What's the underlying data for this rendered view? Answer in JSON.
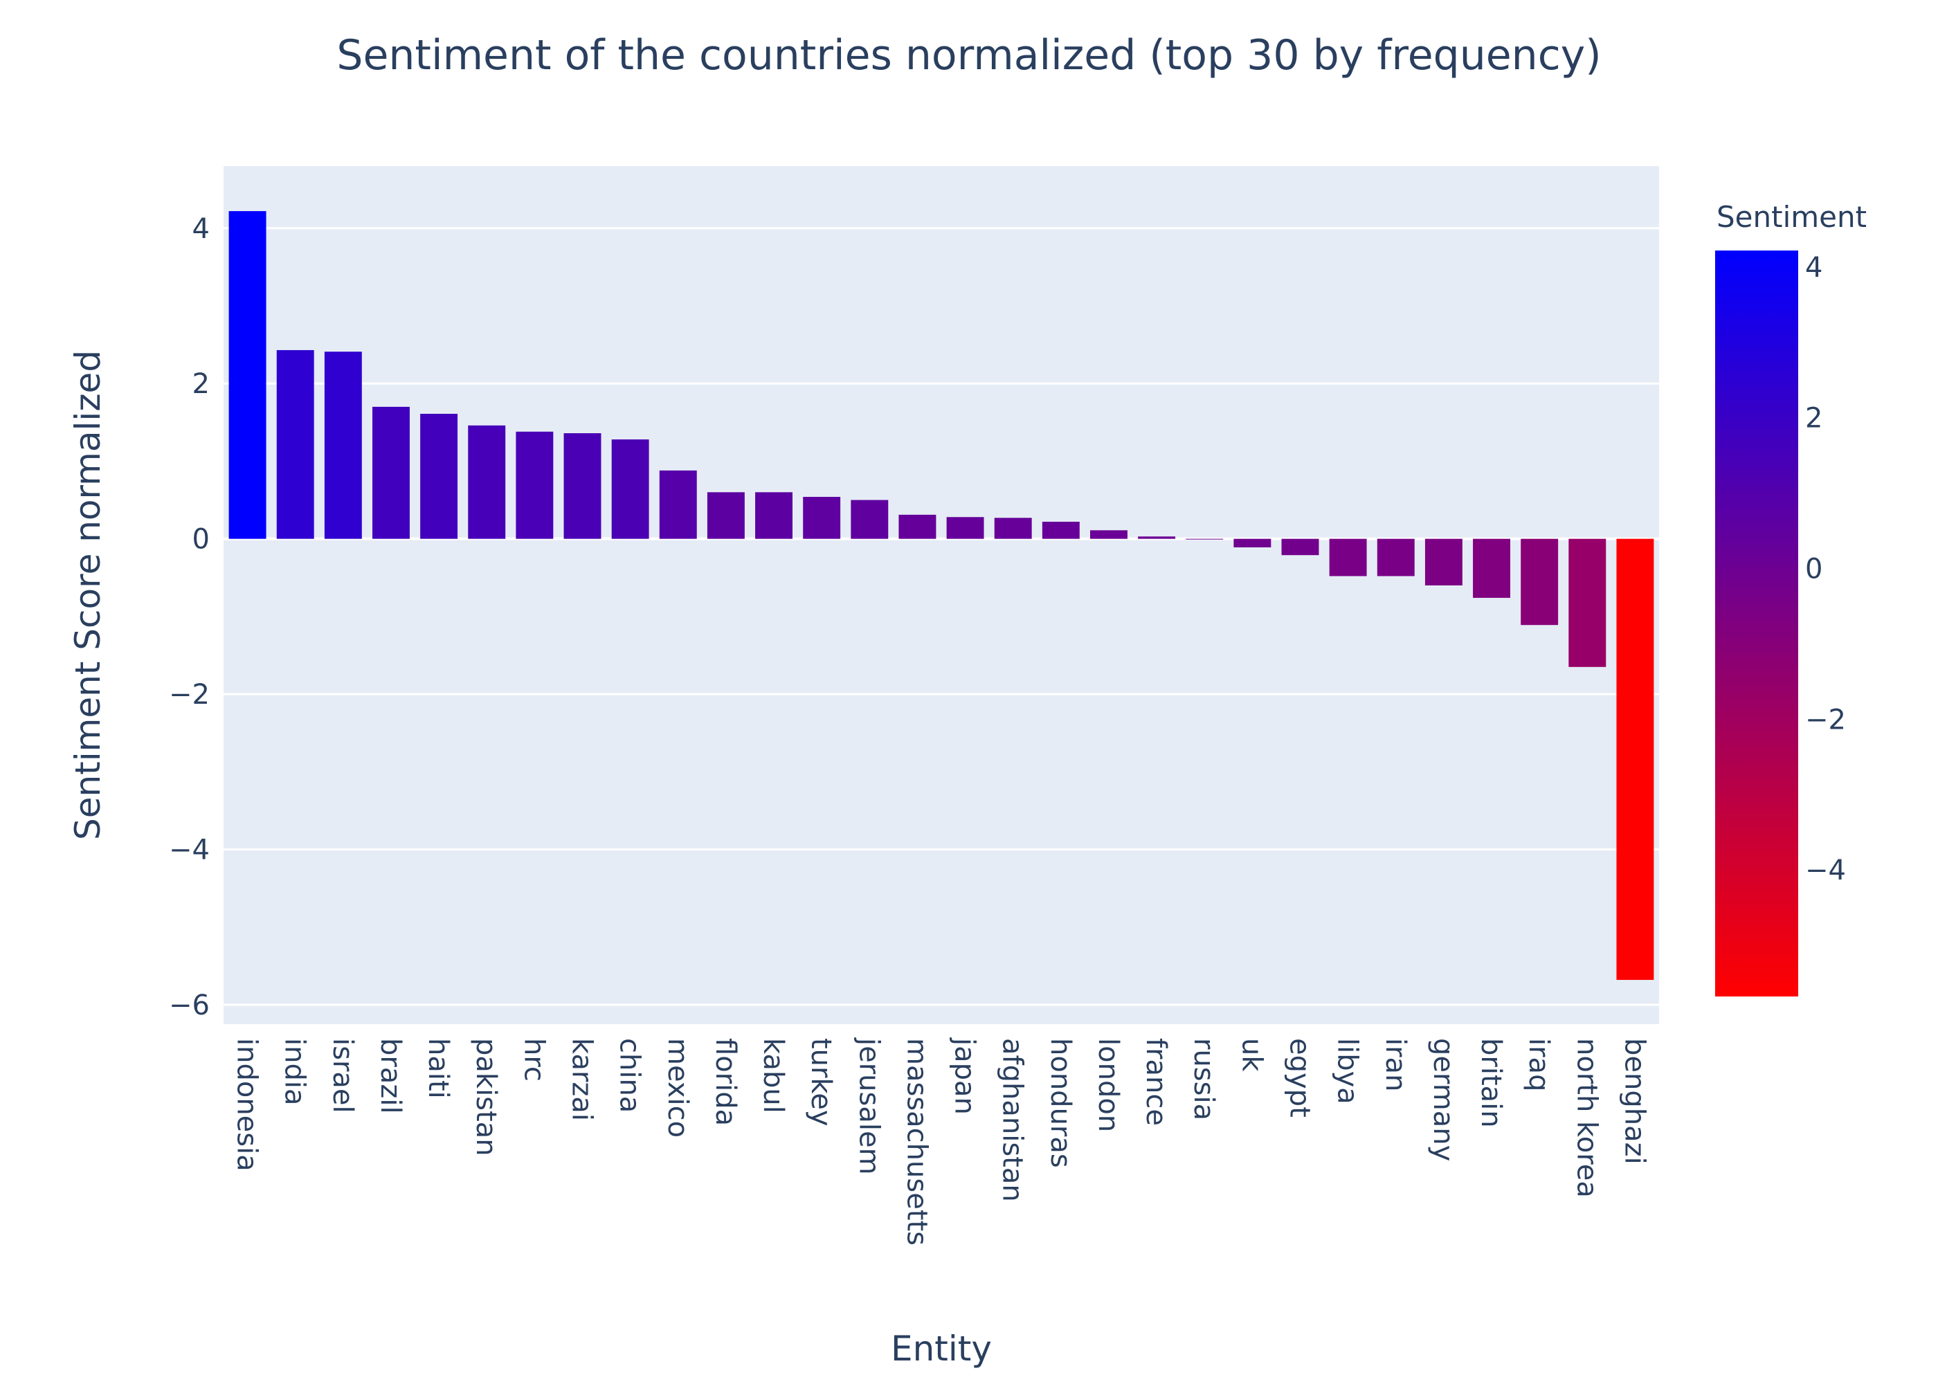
{
  "chart_data": {
    "type": "bar",
    "title": "Sentiment of the countries normalized (top 30 by frequency)",
    "xlabel": "Entity",
    "ylabel": "Sentiment Score normalized",
    "ylim": [
      -6.25,
      4.8
    ],
    "yticks": [
      4,
      2,
      0,
      -2,
      -4,
      -6
    ],
    "ytick_labels": [
      "4",
      "2",
      "0",
      "−2",
      "−4",
      "−6"
    ],
    "grid": true,
    "categories": [
      "indonesia",
      "india",
      "israel",
      "brazil",
      "haiti",
      "pakistan",
      "hrc",
      "karzai",
      "china",
      "mexico",
      "florida",
      "kabul",
      "turkey",
      "jerusalem",
      "massachusetts",
      "japan",
      "afghanistan",
      "honduras",
      "london",
      "france",
      "russia",
      "uk",
      "egypt",
      "libya",
      "iran",
      "germany",
      "britain",
      "iraq",
      "north korea",
      "benghazi"
    ],
    "values": [
      4.22,
      2.43,
      2.41,
      1.7,
      1.61,
      1.46,
      1.38,
      1.36,
      1.28,
      0.88,
      0.6,
      0.6,
      0.54,
      0.5,
      0.31,
      0.28,
      0.27,
      0.22,
      0.11,
      0.03,
      0.0,
      -0.11,
      -0.21,
      -0.48,
      -0.48,
      -0.6,
      -0.76,
      -1.11,
      -1.65,
      -5.68
    ],
    "colorbar": {
      "title": "Sentiment",
      "range": [
        -5.68,
        4.22
      ],
      "ticks": [
        4,
        2,
        0,
        -2,
        -4
      ],
      "tick_labels": [
        "4",
        "2",
        "0",
        "−2",
        "−4"
      ],
      "color_high": "#0000ff",
      "color_low": "#ff0000"
    },
    "colors": {
      "plot_background": "#e5ecf6",
      "gridline": "#ffffff",
      "text": "#2a3f5f"
    }
  }
}
